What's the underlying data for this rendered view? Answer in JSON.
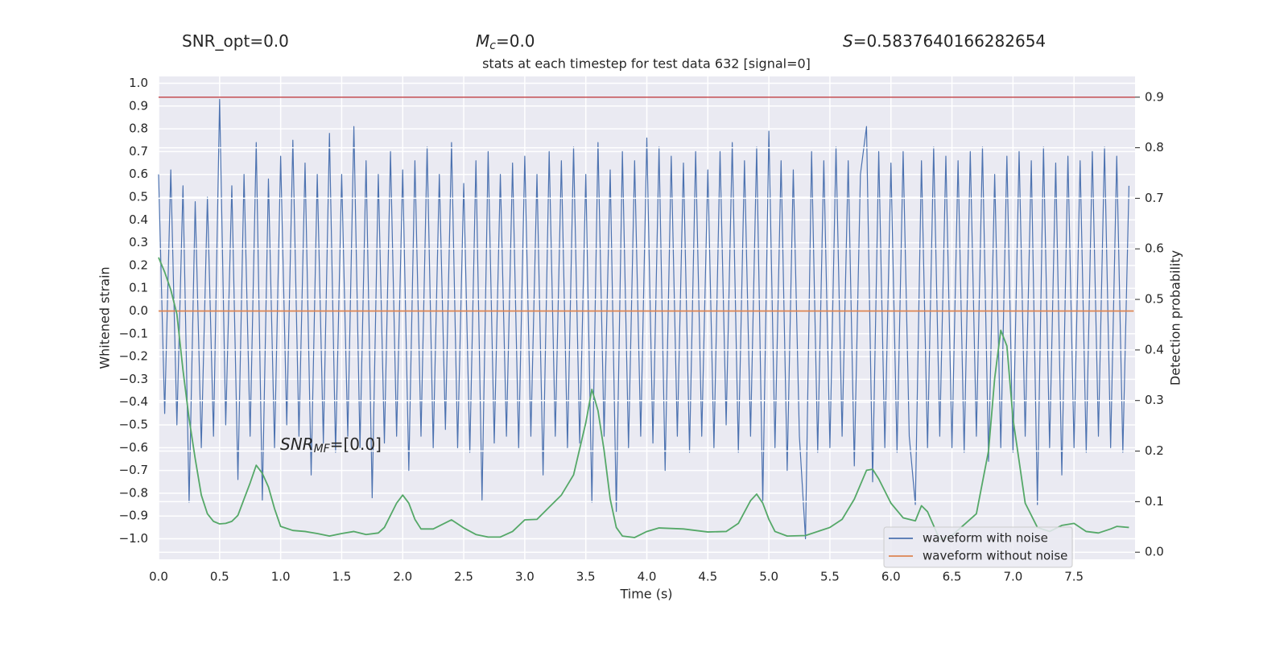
{
  "chart_data": {
    "type": "line",
    "title": "stats at each timestep for test data 632 [signal=0]",
    "annotations": [
      {
        "parts": [
          "SNR_opt=0.0"
        ]
      },
      {
        "parts": [
          "M",
          "c",
          "=0.0"
        ]
      },
      {
        "parts": [
          "S",
          "=0.5837640166282654"
        ]
      },
      {
        "parts": [
          "SNR",
          "MF",
          "=[0.0]"
        ]
      }
    ],
    "x_label": "Time (s)",
    "y_label": "Whitened strain",
    "y2_label": "Detection probability",
    "xlim": [
      0,
      8
    ],
    "ylim": [
      -1.09,
      1.03
    ],
    "y2lim": [
      -0.014,
      0.941
    ],
    "xticks": [
      {
        "value": 0,
        "label": "0.0"
      },
      {
        "value": 0.5,
        "label": "0.5"
      },
      {
        "value": 1,
        "label": "1.0"
      },
      {
        "value": 1.5,
        "label": "1.5"
      },
      {
        "value": 2,
        "label": "2.0"
      },
      {
        "value": 2.5,
        "label": "2.5"
      },
      {
        "value": 3,
        "label": "3.0"
      },
      {
        "value": 3.5,
        "label": "3.5"
      },
      {
        "value": 4,
        "label": "4.0"
      },
      {
        "value": 4.5,
        "label": "4.5"
      },
      {
        "value": 5,
        "label": "5.0"
      },
      {
        "value": 5.5,
        "label": "5.5"
      },
      {
        "value": 6,
        "label": "6.0"
      },
      {
        "value": 6.5,
        "label": "6.5"
      },
      {
        "value": 7,
        "label": "7.0"
      },
      {
        "value": 7.5,
        "label": "7.5"
      }
    ],
    "yticks": [
      {
        "value": -1,
        "label": "−1.0"
      },
      {
        "value": -0.9,
        "label": "−0.9"
      },
      {
        "value": -0.8,
        "label": "−0.8"
      },
      {
        "value": -0.7,
        "label": "−0.7"
      },
      {
        "value": -0.6,
        "label": "−0.6"
      },
      {
        "value": -0.5,
        "label": "−0.5"
      },
      {
        "value": -0.4,
        "label": "−0.4"
      },
      {
        "value": -0.3,
        "label": "−0.3"
      },
      {
        "value": -0.2,
        "label": "−0.2"
      },
      {
        "value": -0.1,
        "label": "−0.1"
      },
      {
        "value": 0,
        "label": "0.0"
      },
      {
        "value": 0.1,
        "label": "0.1"
      },
      {
        "value": 0.2,
        "label": "0.2"
      },
      {
        "value": 0.3,
        "label": "0.3"
      },
      {
        "value": 0.4,
        "label": "0.4"
      },
      {
        "value": 0.5,
        "label": "0.5"
      },
      {
        "value": 0.6,
        "label": "0.6"
      },
      {
        "value": 0.7,
        "label": "0.7"
      },
      {
        "value": 0.8,
        "label": "0.8"
      },
      {
        "value": 0.9,
        "label": "0.9"
      },
      {
        "value": 1,
        "label": "1.0"
      }
    ],
    "y2ticks": [
      {
        "value": 0,
        "label": "0.0"
      },
      {
        "value": 0.1,
        "label": "0.1"
      },
      {
        "value": 0.2,
        "label": "0.2"
      },
      {
        "value": 0.3,
        "label": "0.3"
      },
      {
        "value": 0.4,
        "label": "0.4"
      },
      {
        "value": 0.5,
        "label": "0.5"
      },
      {
        "value": 0.6,
        "label": "0.6"
      },
      {
        "value": 0.7,
        "label": "0.7"
      },
      {
        "value": 0.8,
        "label": "0.8"
      },
      {
        "value": 0.9,
        "label": "0.9"
      }
    ],
    "grid": true,
    "legend": "lower right",
    "hlines": [
      {
        "value": 0.9,
        "axis": "y2",
        "color": "#c44e52"
      }
    ],
    "series": [
      {
        "name": "waveform with noise",
        "color": "#4c72b0",
        "x": [
          0,
          0.05,
          0.1,
          0.15,
          0.2,
          0.25,
          0.3,
          0.35,
          0.4,
          0.45,
          0.5,
          0.55,
          0.6,
          0.65,
          0.7,
          0.75,
          0.8,
          0.85,
          0.9,
          0.95,
          1,
          1.05,
          1.1,
          1.15,
          1.2,
          1.25,
          1.3,
          1.35,
          1.4,
          1.45,
          1.5,
          1.55,
          1.6,
          1.65,
          1.7,
          1.75,
          1.8,
          1.85,
          1.9,
          1.95,
          2,
          2.05,
          2.1,
          2.15,
          2.2,
          2.25,
          2.3,
          2.35,
          2.4,
          2.45,
          2.5,
          2.55,
          2.6,
          2.65,
          2.7,
          2.75,
          2.8,
          2.85,
          2.9,
          2.95,
          3,
          3.05,
          3.1,
          3.15,
          3.2,
          3.25,
          3.3,
          3.35,
          3.4,
          3.45,
          3.5,
          3.55,
          3.6,
          3.65,
          3.7,
          3.75,
          3.8,
          3.85,
          3.9,
          3.95,
          4,
          4.05,
          4.1,
          4.15,
          4.2,
          4.25,
          4.3,
          4.35,
          4.4,
          4.45,
          4.5,
          4.55,
          4.6,
          4.65,
          4.7,
          4.75,
          4.8,
          4.85,
          4.9,
          4.95,
          5,
          5.05,
          5.1,
          5.15,
          5.2,
          5.25,
          5.3,
          5.35,
          5.4,
          5.45,
          5.5,
          5.55,
          5.6,
          5.65,
          5.7,
          5.75,
          5.8,
          5.85,
          5.9,
          5.95,
          6,
          6.05,
          6.1,
          6.15,
          6.2,
          6.25,
          6.3,
          6.35,
          6.4,
          6.45,
          6.5,
          6.55,
          6.6,
          6.65,
          6.7,
          6.75,
          6.8,
          6.85,
          6.9,
          6.95,
          7,
          7.05,
          7.1,
          7.15,
          7.2,
          7.25,
          7.3,
          7.35,
          7.4,
          7.45,
          7.5,
          7.55,
          7.6,
          7.65,
          7.7,
          7.75,
          7.8,
          7.85,
          7.9,
          7.95
        ],
        "values": [
          0.6,
          -0.45,
          0.62,
          -0.5,
          0.55,
          -0.84,
          0.48,
          -0.6,
          0.5,
          -0.55,
          0.93,
          -0.5,
          0.55,
          -0.74,
          0.6,
          -0.55,
          0.74,
          -0.83,
          0.58,
          -0.6,
          0.68,
          -0.5,
          0.75,
          -0.55,
          0.65,
          -0.72,
          0.6,
          -0.58,
          0.78,
          -0.62,
          0.6,
          -0.55,
          0.81,
          -0.6,
          0.66,
          -0.82,
          0.6,
          -0.58,
          0.7,
          -0.55,
          0.62,
          -0.7,
          0.66,
          -0.55,
          0.72,
          -0.6,
          0.6,
          -0.52,
          0.74,
          -0.6,
          0.56,
          -0.62,
          0.66,
          -0.83,
          0.7,
          -0.58,
          0.6,
          -0.55,
          0.65,
          -0.6,
          0.68,
          -0.55,
          0.6,
          -0.72,
          0.7,
          -0.55,
          0.66,
          -0.6,
          0.72,
          -0.58,
          0.6,
          -0.84,
          0.74,
          -0.55,
          0.62,
          -0.88,
          0.7,
          -0.6,
          0.66,
          -0.55,
          0.76,
          -0.58,
          0.72,
          -0.7,
          0.68,
          -0.55,
          0.65,
          -0.62,
          0.7,
          -0.55,
          0.62,
          -0.6,
          0.7,
          -0.5,
          0.74,
          -0.62,
          0.66,
          -0.55,
          0.72,
          -0.84,
          0.79,
          -0.6,
          0.66,
          -0.7,
          0.62,
          -0.55,
          -1.0,
          0.7,
          -0.62,
          0.66,
          -0.6,
          0.72,
          -0.55,
          0.66,
          -0.68,
          0.6,
          0.81,
          -0.75,
          0.7,
          -0.6,
          0.65,
          -0.62,
          0.7,
          -0.55,
          -0.85,
          0.66,
          -0.6,
          0.72,
          -0.55,
          0.68,
          -0.6,
          0.66,
          -0.62,
          0.7,
          -0.55,
          0.72,
          -0.66,
          0.6,
          -0.6,
          0.68,
          -0.62,
          0.7,
          -0.55,
          0.66,
          -0.85,
          0.72,
          -0.6,
          0.65,
          -0.72,
          0.68,
          -0.6,
          0.66,
          -0.62,
          0.7,
          -0.55,
          0.72,
          -0.6,
          0.68,
          -0.62,
          0.55
        ]
      },
      {
        "name": "waveform without noise",
        "color": "#dd8452",
        "x": [
          0,
          7.99
        ],
        "values": [
          0,
          0
        ]
      },
      {
        "color": "#55a868",
        "axis": "y2",
        "x": [
          0,
          0.05,
          0.1,
          0.15,
          0.2,
          0.25,
          0.3,
          0.35,
          0.4,
          0.45,
          0.5,
          0.55,
          0.6,
          0.65,
          0.7,
          0.75,
          0.8,
          0.85,
          0.9,
          0.95,
          1,
          1.1,
          1.2,
          1.3,
          1.4,
          1.5,
          1.6,
          1.7,
          1.8,
          1.85,
          1.95,
          2,
          2.05,
          2.1,
          2.15,
          2.25,
          2.4,
          2.5,
          2.6,
          2.7,
          2.8,
          2.9,
          3,
          3.1,
          3.2,
          3.3,
          3.4,
          3.5,
          3.55,
          3.6,
          3.65,
          3.7,
          3.75,
          3.8,
          3.9,
          4,
          4.1,
          4.3,
          4.5,
          4.65,
          4.75,
          4.85,
          4.9,
          4.95,
          5,
          5.05,
          5.15,
          5.3,
          5.5,
          5.6,
          5.7,
          5.8,
          5.85,
          5.9,
          6,
          6.1,
          6.2,
          6.25,
          6.3,
          6.4,
          6.5,
          6.7,
          6.8,
          6.85,
          6.9,
          6.95,
          7,
          7.1,
          7.2,
          7.3,
          7.4,
          7.5,
          7.6,
          7.7,
          7.8,
          7.85,
          7.95
        ],
        "values": [
          0.583,
          0.554,
          0.519,
          0.471,
          0.36,
          0.264,
          0.185,
          0.113,
          0.076,
          0.061,
          0.056,
          0.057,
          0.061,
          0.073,
          0.105,
          0.137,
          0.172,
          0.156,
          0.129,
          0.086,
          0.051,
          0.043,
          0.041,
          0.037,
          0.032,
          0.037,
          0.041,
          0.035,
          0.038,
          0.049,
          0.097,
          0.113,
          0.097,
          0.065,
          0.046,
          0.046,
          0.064,
          0.048,
          0.035,
          0.03,
          0.03,
          0.041,
          0.064,
          0.065,
          0.089,
          0.113,
          0.153,
          0.256,
          0.322,
          0.28,
          0.201,
          0.105,
          0.049,
          0.032,
          0.029,
          0.041,
          0.048,
          0.046,
          0.04,
          0.041,
          0.057,
          0.102,
          0.115,
          0.097,
          0.065,
          0.041,
          0.032,
          0.033,
          0.049,
          0.065,
          0.105,
          0.162,
          0.164,
          0.145,
          0.097,
          0.068,
          0.062,
          0.092,
          0.08,
          0.025,
          0.033,
          0.076,
          0.201,
          0.344,
          0.439,
          0.408,
          0.264,
          0.097,
          0.049,
          0.041,
          0.053,
          0.057,
          0.041,
          0.038,
          0.046,
          0.051,
          0.049
        ]
      }
    ]
  }
}
